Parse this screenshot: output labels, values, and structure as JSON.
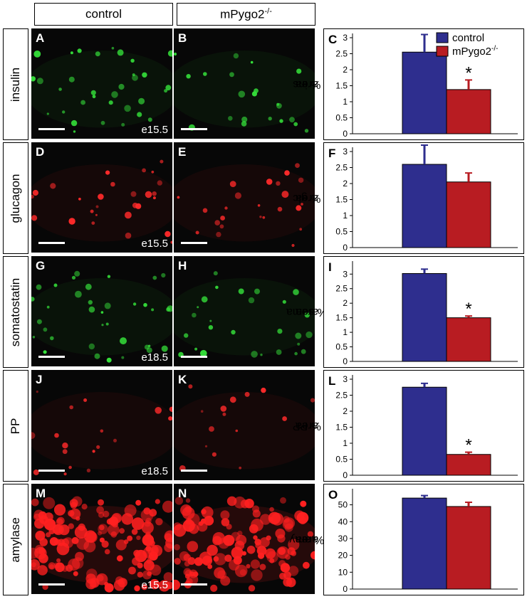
{
  "columns": {
    "control": "control",
    "mutant": "mPygo2",
    "mutant_sup": "-/-"
  },
  "rows": [
    {
      "label": "insulin",
      "panels": [
        {
          "letter": "A",
          "stage": "e15.5",
          "color": "#35e03a",
          "density": 0.55,
          "seed": 11
        },
        {
          "letter": "B",
          "stage": "",
          "color": "#35e03a",
          "density": 0.35,
          "seed": 23
        }
      ],
      "chart_letter": "C",
      "ylabel_pre": "% ins",
      "ylabel_post": " area"
    },
    {
      "label": "glucagon",
      "panels": [
        {
          "letter": "D",
          "stage": "e15.5",
          "color": "#ff2a2a",
          "density": 0.45,
          "seed": 37
        },
        {
          "letter": "E",
          "stage": "",
          "color": "#ff2a2a",
          "density": 0.4,
          "seed": 41
        }
      ],
      "chart_letter": "F",
      "ylabel_pre": "% glc",
      "ylabel_post": " area"
    },
    {
      "label": "somatostatin",
      "panels": [
        {
          "letter": "G",
          "stage": "e18.5",
          "color": "#35e03a",
          "density": 0.6,
          "seed": 53
        },
        {
          "letter": "H",
          "stage": "",
          "color": "#35e03a",
          "density": 0.45,
          "seed": 67
        }
      ],
      "chart_letter": "I",
      "ylabel_pre": "% soma",
      "ylabel_post": " area"
    },
    {
      "label": "PP",
      "panels": [
        {
          "letter": "J",
          "stage": "e18.5",
          "color": "#ff2a2a",
          "density": 0.3,
          "seed": 71
        },
        {
          "letter": "K",
          "stage": "",
          "color": "#ff2a2a",
          "density": 0.25,
          "seed": 83
        }
      ],
      "chart_letter": "L",
      "ylabel_pre": "% PP",
      "ylabel_post": " area"
    },
    {
      "label": "amylase",
      "panels": [
        {
          "letter": "M",
          "stage": "e15.5",
          "color": "#ff2020",
          "density": 2.4,
          "seed": 97
        },
        {
          "letter": "N",
          "stage": "",
          "color": "#ff2020",
          "density": 2.0,
          "seed": 101
        }
      ],
      "chart_letter": "O",
      "ylabel_pre": "% amy",
      "ylabel_post": " area"
    }
  ],
  "legend": {
    "control": "control",
    "mutant": "mPygo2",
    "mutant_sup": "-/-"
  },
  "colors": {
    "control": "#2e2e8e",
    "mutant": "#b81c22"
  },
  "chart_data": [
    {
      "type": "bar",
      "categories": [
        "control",
        "mPygo2-/-"
      ],
      "values": [
        2.55,
        1.38
      ],
      "errors": [
        0.55,
        0.3
      ],
      "ylim": [
        0,
        3
      ],
      "yticks": [
        "0",
        "0.5",
        "1",
        "1.5",
        "2",
        "2.5",
        "3"
      ],
      "tickvals": [
        0,
        0.5,
        1,
        1.5,
        2,
        2.5,
        3
      ],
      "significant": [
        false,
        true
      ],
      "legend": true
    },
    {
      "type": "bar",
      "categories": [
        "control",
        "mPygo2-/-"
      ],
      "values": [
        2.6,
        2.05
      ],
      "errors": [
        0.6,
        0.28
      ],
      "ylim": [
        0,
        3
      ],
      "yticks": [
        "0",
        "0.5",
        "1",
        "1.5",
        "2",
        "2.5",
        "3"
      ],
      "tickvals": [
        0,
        0.5,
        1,
        1.5,
        2,
        2.5,
        3
      ],
      "significant": [
        false,
        false
      ],
      "legend": false
    },
    {
      "type": "bar",
      "categories": [
        "control",
        "mPygo2-/-"
      ],
      "values": [
        3.02,
        1.5
      ],
      "errors": [
        0.15,
        0.06
      ],
      "ylim": [
        0,
        3.3
      ],
      "yticks": [
        "0",
        "0.5",
        "1",
        "1.5",
        "2",
        "2.5",
        "3"
      ],
      "tickvals": [
        0,
        0.5,
        1,
        1.5,
        2,
        2.5,
        3
      ],
      "significant": [
        false,
        true
      ],
      "legend": false
    },
    {
      "type": "bar",
      "categories": [
        "control",
        "mPygo2-/-"
      ],
      "values": [
        2.75,
        0.65
      ],
      "errors": [
        0.12,
        0.07
      ],
      "ylim": [
        0,
        3
      ],
      "yticks": [
        "0",
        "0.5",
        "1",
        "1.5",
        "2",
        "2.5",
        "3"
      ],
      "tickvals": [
        0,
        0.5,
        1,
        1.5,
        2,
        2.5,
        3
      ],
      "significant": [
        false,
        true
      ],
      "legend": false
    },
    {
      "type": "bar",
      "categories": [
        "control",
        "mPygo2-/-"
      ],
      "values": [
        54,
        49
      ],
      "errors": [
        1.5,
        2.5
      ],
      "ylim": [
        0,
        57
      ],
      "yticks": [
        "0",
        "10",
        "20",
        "30",
        "40",
        "50"
      ],
      "tickvals": [
        0,
        10,
        20,
        30,
        40,
        50
      ],
      "significant": [
        false,
        false
      ],
      "legend": false
    }
  ]
}
